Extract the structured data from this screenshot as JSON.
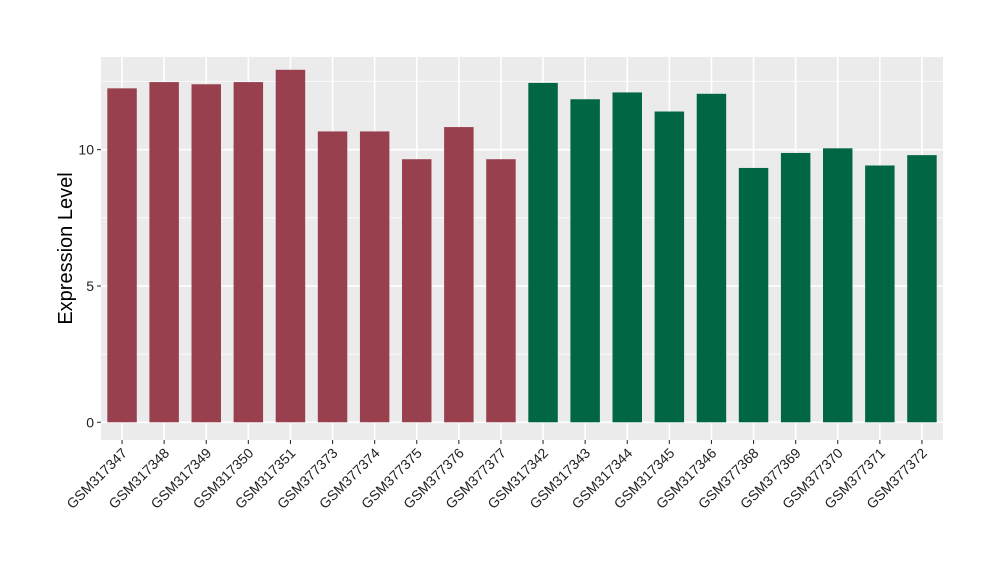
{
  "chart_data": {
    "type": "bar",
    "title": "",
    "xlabel": "",
    "ylabel": "Expression Level",
    "ylim": [
      -0.65,
      13.4
    ],
    "yticks": [
      0,
      5,
      10
    ],
    "grid": true,
    "legend": "none",
    "colors": {
      "group_a": "#99404e",
      "group_b": "#006644",
      "panel_bg": "#ebebeb",
      "grid": "#ffffff"
    },
    "categories": [
      "GSM317347",
      "GSM317348",
      "GSM317349",
      "GSM317350",
      "GSM317351",
      "GSM377373",
      "GSM377374",
      "GSM377375",
      "GSM377376",
      "GSM377377",
      "GSM317342",
      "GSM317343",
      "GSM317344",
      "GSM317345",
      "GSM317346",
      "GSM377368",
      "GSM377369",
      "GSM377370",
      "GSM377371",
      "GSM377372"
    ],
    "values": [
      12.25,
      12.48,
      12.4,
      12.48,
      12.93,
      10.67,
      10.67,
      9.65,
      10.83,
      9.65,
      12.45,
      11.85,
      12.1,
      11.4,
      12.05,
      9.33,
      9.88,
      10.05,
      9.42,
      9.8
    ],
    "groups": [
      "group_a",
      "group_a",
      "group_a",
      "group_a",
      "group_a",
      "group_a",
      "group_a",
      "group_a",
      "group_a",
      "group_a",
      "group_b",
      "group_b",
      "group_b",
      "group_b",
      "group_b",
      "group_b",
      "group_b",
      "group_b",
      "group_b",
      "group_b"
    ]
  }
}
